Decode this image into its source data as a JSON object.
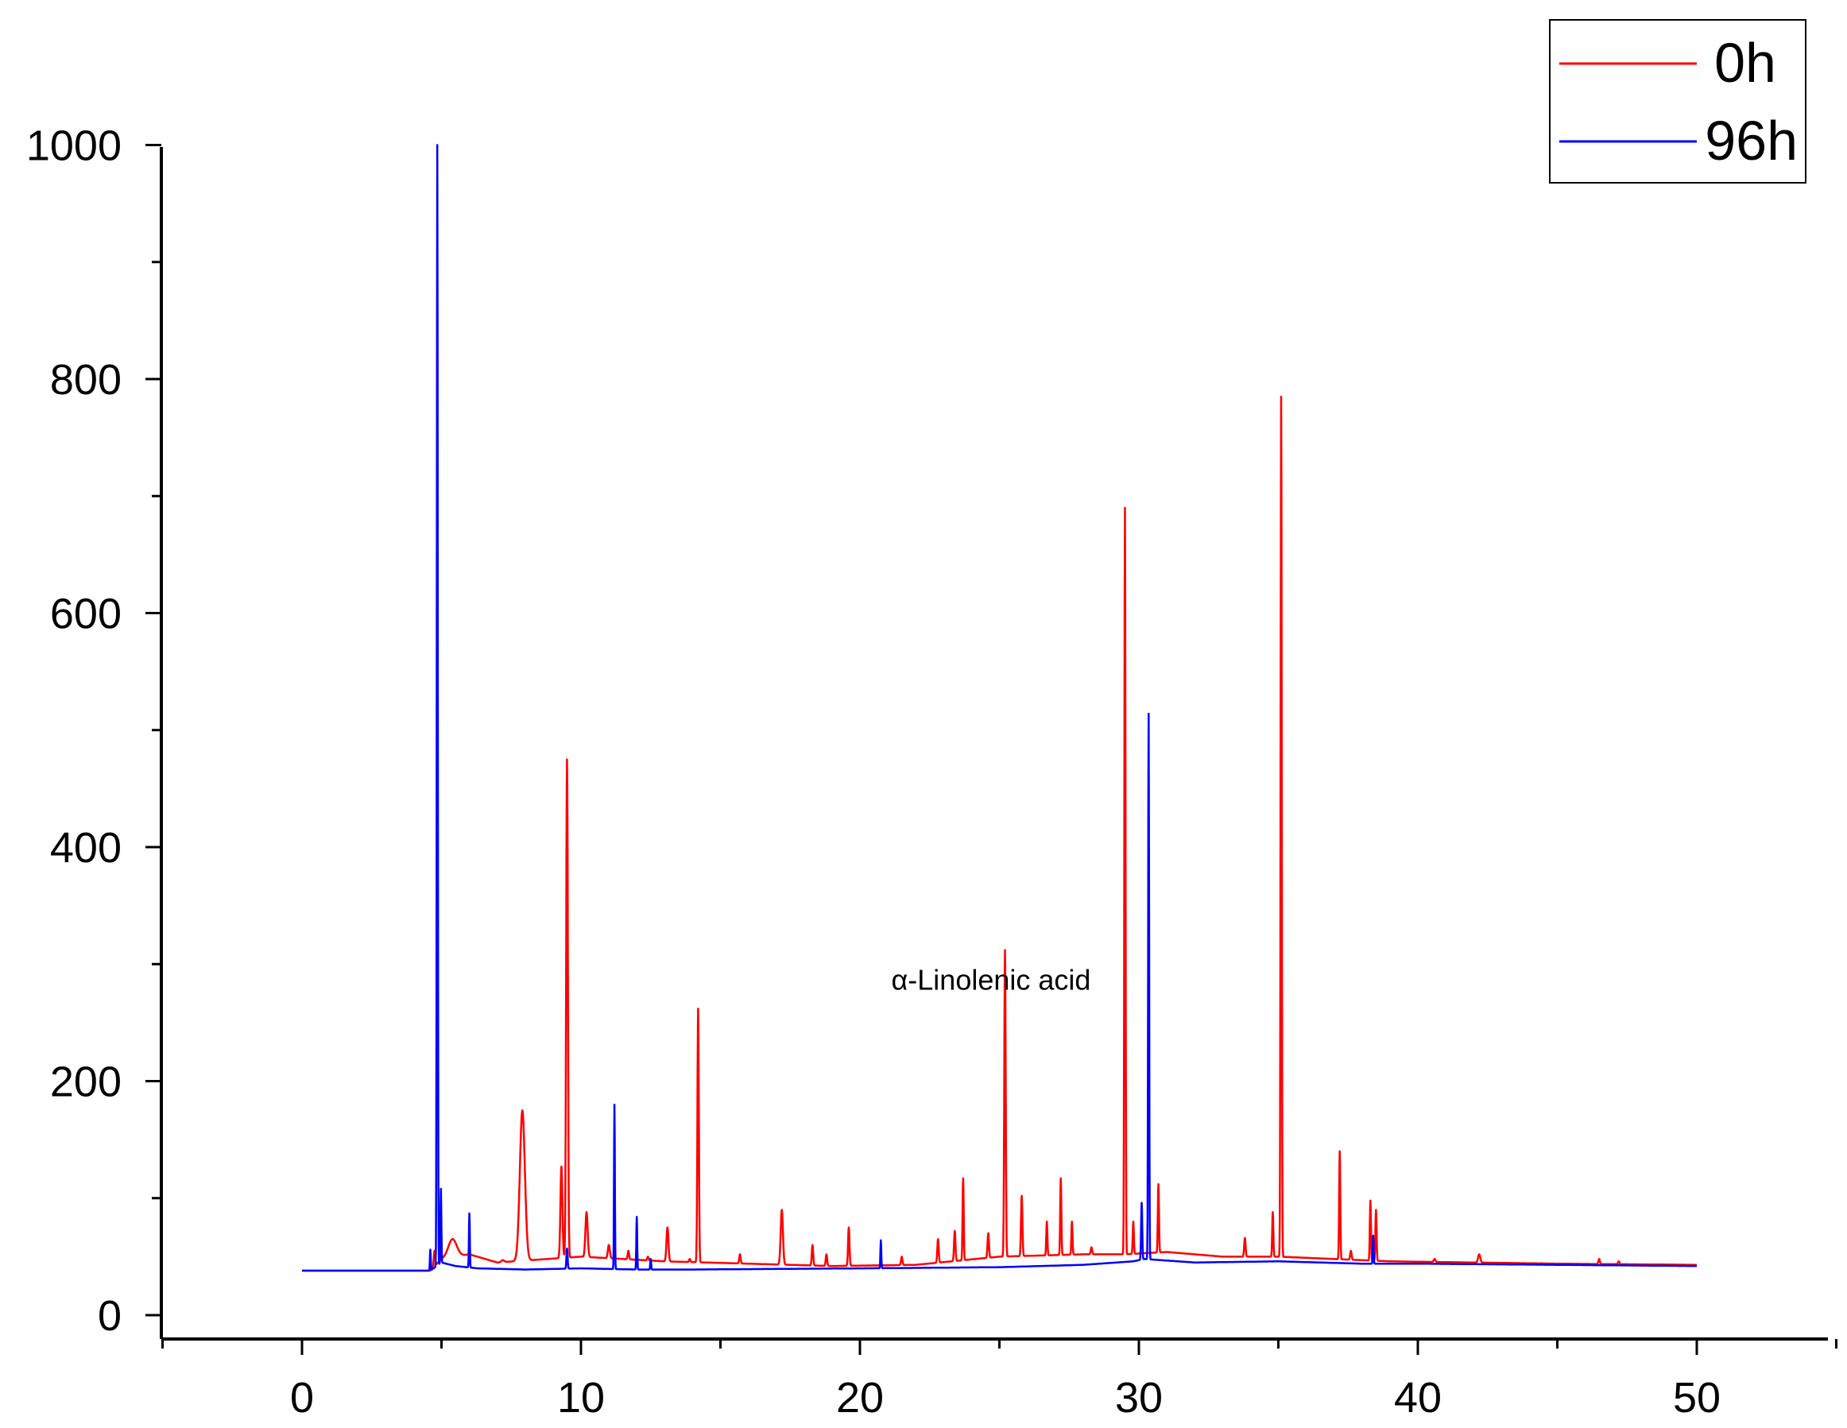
{
  "chart_data": {
    "type": "line",
    "title": "",
    "xlabel": "",
    "ylabel": "",
    "xlim": [
      -5,
      55
    ],
    "ylim": [
      0,
      1000
    ],
    "x_ticks": [
      0,
      10,
      20,
      30,
      40,
      50
    ],
    "y_ticks": [
      0,
      200,
      400,
      600,
      800,
      1000
    ],
    "x_tick_labels": [
      "0",
      "10",
      "20",
      "30",
      "40",
      "50"
    ],
    "y_tick_labels": [
      "0",
      "200",
      "400",
      "600",
      "800",
      "1000"
    ],
    "grid": false,
    "legend": "top-right",
    "legend_entries": [
      "0h",
      "96h"
    ],
    "annotation": {
      "text": "α-Linolenic acid",
      "x": 24.7,
      "y": 278
    },
    "series": [
      {
        "name": "0h",
        "color": "#ff0000",
        "baseline": [
          [
            0,
            38
          ],
          [
            4.6,
            38
          ],
          [
            5,
            48
          ],
          [
            6,
            52
          ],
          [
            7,
            45
          ],
          [
            10,
            50
          ],
          [
            13,
            46
          ],
          [
            16,
            44
          ],
          [
            19,
            42
          ],
          [
            22,
            43
          ],
          [
            25,
            50
          ],
          [
            28,
            52
          ],
          [
            29.5,
            52
          ],
          [
            31,
            54
          ],
          [
            33,
            50
          ],
          [
            35,
            50
          ],
          [
            37,
            48
          ],
          [
            39,
            46
          ],
          [
            42,
            45
          ],
          [
            45,
            44
          ],
          [
            50,
            43
          ]
        ],
        "peaks": [
          {
            "x": 4.75,
            "y": 55,
            "w": 0.05
          },
          {
            "x": 5.4,
            "y": 65,
            "w": 0.3
          },
          {
            "x": 7.2,
            "y": 47,
            "w": 0.1
          },
          {
            "x": 7.9,
            "y": 175,
            "w": 0.18
          },
          {
            "x": 9.3,
            "y": 127,
            "w": 0.07
          },
          {
            "x": 9.5,
            "y": 475,
            "w": 0.06
          },
          {
            "x": 10.2,
            "y": 88,
            "w": 0.08
          },
          {
            "x": 11,
            "y": 60,
            "w": 0.07
          },
          {
            "x": 11.7,
            "y": 55,
            "w": 0.05
          },
          {
            "x": 12.4,
            "y": 50,
            "w": 0.05
          },
          {
            "x": 13.1,
            "y": 75,
            "w": 0.07
          },
          {
            "x": 13.9,
            "y": 48,
            "w": 0.05
          },
          {
            "x": 14.2,
            "y": 262,
            "w": 0.05
          },
          {
            "x": 15.7,
            "y": 52,
            "w": 0.05
          },
          {
            "x": 17.2,
            "y": 90,
            "w": 0.08
          },
          {
            "x": 18.3,
            "y": 60,
            "w": 0.05
          },
          {
            "x": 18.8,
            "y": 52,
            "w": 0.05
          },
          {
            "x": 19.6,
            "y": 75,
            "w": 0.05
          },
          {
            "x": 21.5,
            "y": 50,
            "w": 0.05
          },
          {
            "x": 22.8,
            "y": 65,
            "w": 0.05
          },
          {
            "x": 23.4,
            "y": 72,
            "w": 0.05
          },
          {
            "x": 23.7,
            "y": 117,
            "w": 0.04
          },
          {
            "x": 24.6,
            "y": 70,
            "w": 0.05
          },
          {
            "x": 25.2,
            "y": 312,
            "w": 0.05
          },
          {
            "x": 25.8,
            "y": 102,
            "w": 0.05
          },
          {
            "x": 26.7,
            "y": 80,
            "w": 0.04
          },
          {
            "x": 27.2,
            "y": 117,
            "w": 0.04
          },
          {
            "x": 27.6,
            "y": 80,
            "w": 0.04
          },
          {
            "x": 28.3,
            "y": 58,
            "w": 0.05
          },
          {
            "x": 29.5,
            "y": 690,
            "w": 0.04
          },
          {
            "x": 29.8,
            "y": 80,
            "w": 0.04
          },
          {
            "x": 30.7,
            "y": 112,
            "w": 0.04
          },
          {
            "x": 33.8,
            "y": 66,
            "w": 0.05
          },
          {
            "x": 34.8,
            "y": 88,
            "w": 0.04
          },
          {
            "x": 35.1,
            "y": 785,
            "w": 0.04
          },
          {
            "x": 37.2,
            "y": 140,
            "w": 0.04
          },
          {
            "x": 37.6,
            "y": 55,
            "w": 0.05
          },
          {
            "x": 38.3,
            "y": 98,
            "w": 0.04
          },
          {
            "x": 38.5,
            "y": 90,
            "w": 0.04
          },
          {
            "x": 40.6,
            "y": 48,
            "w": 0.06
          },
          {
            "x": 42.2,
            "y": 52,
            "w": 0.08
          },
          {
            "x": 46.5,
            "y": 48,
            "w": 0.05
          },
          {
            "x": 47.2,
            "y": 46,
            "w": 0.05
          }
        ]
      },
      {
        "name": "96h",
        "color": "#0000ff",
        "baseline": [
          [
            0,
            38
          ],
          [
            4.6,
            38
          ],
          [
            5,
            45
          ],
          [
            5.5,
            42
          ],
          [
            6.3,
            40
          ],
          [
            8,
            39
          ],
          [
            10,
            40
          ],
          [
            12,
            39
          ],
          [
            14,
            39
          ],
          [
            20,
            40
          ],
          [
            25,
            41
          ],
          [
            28,
            43
          ],
          [
            29.8,
            46
          ],
          [
            30.2,
            48
          ],
          [
            32,
            45
          ],
          [
            35,
            46
          ],
          [
            38,
            44
          ],
          [
            40,
            44
          ],
          [
            45,
            43
          ],
          [
            50,
            42
          ]
        ],
        "peaks": [
          {
            "x": 4.6,
            "y": 56,
            "w": 0.03
          },
          {
            "x": 4.85,
            "y": 1000,
            "w": 0.035
          },
          {
            "x": 4.98,
            "y": 108,
            "w": 0.03
          },
          {
            "x": 6.0,
            "y": 87,
            "w": 0.03
          },
          {
            "x": 9.5,
            "y": 57,
            "w": 0.04
          },
          {
            "x": 11.2,
            "y": 180,
            "w": 0.03
          },
          {
            "x": 12.0,
            "y": 84,
            "w": 0.03
          },
          {
            "x": 12.5,
            "y": 48,
            "w": 0.03
          },
          {
            "x": 20.75,
            "y": 64,
            "w": 0.03
          },
          {
            "x": 30.1,
            "y": 96,
            "w": 0.04
          },
          {
            "x": 30.35,
            "y": 514,
            "w": 0.035
          },
          {
            "x": 38.4,
            "y": 68,
            "w": 0.03
          }
        ]
      }
    ]
  }
}
